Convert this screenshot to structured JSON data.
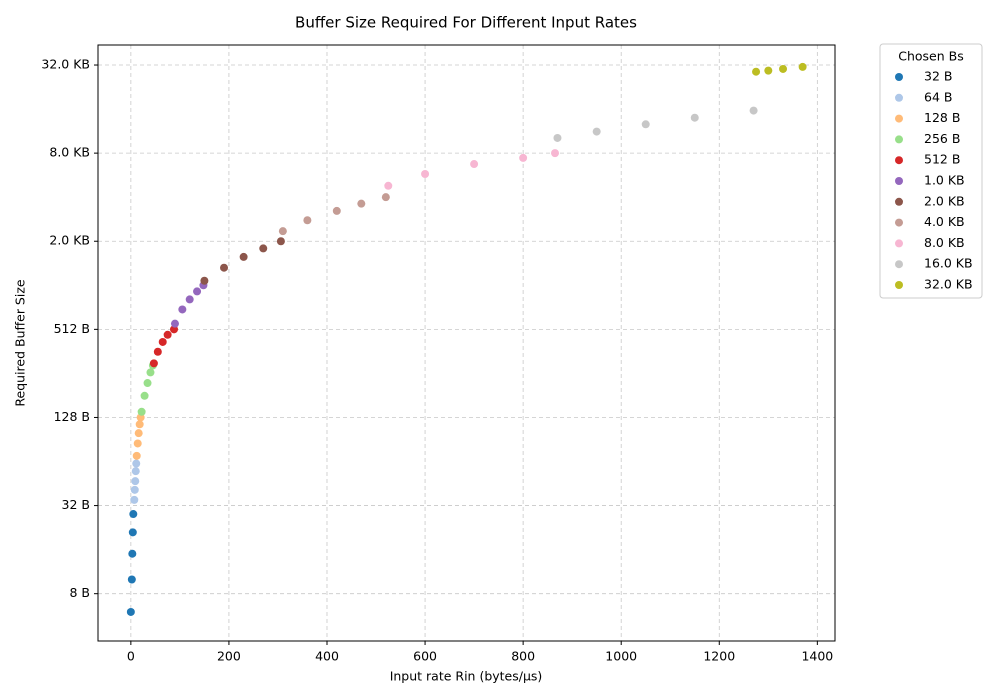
{
  "chart_data": {
    "type": "scatter",
    "title": "Buffer Size Required For Different Input Rates",
    "x_label": "Input rate Rin (bytes/µs)",
    "y_label": "Required Buffer Size",
    "legend_title": "Chosen Bs",
    "legend": "outside-upper-right",
    "grid": true,
    "y_scale": "log2",
    "xlim": [
      -67,
      1436
    ],
    "xticks": [
      0,
      200,
      400,
      600,
      800,
      1000,
      1200,
      1400
    ],
    "ylim": [
      3.8,
      44900
    ],
    "yticks": [
      {
        "value": 8,
        "label": "8 B"
      },
      {
        "value": 32,
        "label": "32 B"
      },
      {
        "value": 128,
        "label": "128 B"
      },
      {
        "value": 512,
        "label": "512 B"
      },
      {
        "value": 2048,
        "label": "2.0 KB"
      },
      {
        "value": 8192,
        "label": "8.0 KB"
      },
      {
        "value": 32768,
        "label": "32.0 KB"
      }
    ],
    "series": [
      {
        "name": "32 B",
        "color": "#1f77b4",
        "x": [
          0,
          2,
          3,
          4,
          5
        ],
        "values": [
          6,
          10,
          15,
          21,
          28
        ]
      },
      {
        "name": "64 B",
        "color": "#aec7e8",
        "x": [
          7,
          8,
          9,
          10,
          11
        ],
        "values": [
          35,
          41,
          47,
          55,
          62
        ]
      },
      {
        "name": "128 B",
        "color": "#ffbb78",
        "x": [
          12,
          14,
          16,
          18,
          20
        ],
        "values": [
          70,
          85,
          100,
          115,
          128
        ]
      },
      {
        "name": "256 B",
        "color": "#98df8a",
        "x": [
          22,
          28,
          34,
          40,
          45
        ],
        "values": [
          140,
          180,
          220,
          260,
          290
        ]
      },
      {
        "name": "512 B",
        "color": "#d62728",
        "x": [
          47,
          55,
          65,
          75,
          88
        ],
        "values": [
          300,
          360,
          420,
          470,
          512
        ]
      },
      {
        "name": "1.0 KB",
        "color": "#9467bd",
        "x": [
          90,
          105,
          120,
          135,
          148
        ],
        "values": [
          560,
          700,
          820,
          930,
          1024
        ]
      },
      {
        "name": "2.0 KB",
        "color": "#8c564b",
        "x": [
          150,
          190,
          230,
          270,
          306
        ],
        "values": [
          1100,
          1350,
          1600,
          1830,
          2048
        ]
      },
      {
        "name": "4.0 KB",
        "color": "#c49c94",
        "x": [
          310,
          360,
          420,
          470,
          520
        ],
        "values": [
          2400,
          2850,
          3300,
          3700,
          4096
        ]
      },
      {
        "name": "8.0 KB",
        "color": "#f7b6d2",
        "x": [
          525,
          600,
          700,
          800,
          865
        ],
        "values": [
          4900,
          5900,
          6900,
          7600,
          8192
        ]
      },
      {
        "name": "16.0 KB",
        "color": "#c7c7c7",
        "x": [
          870,
          950,
          1050,
          1150,
          1270
        ],
        "values": [
          10400,
          11500,
          12900,
          14300,
          16000
        ]
      },
      {
        "name": "32.0 KB",
        "color": "#bcbd22",
        "x": [
          1275,
          1300,
          1330,
          1370
        ],
        "values": [
          29500,
          30000,
          30800,
          31800
        ]
      }
    ]
  }
}
